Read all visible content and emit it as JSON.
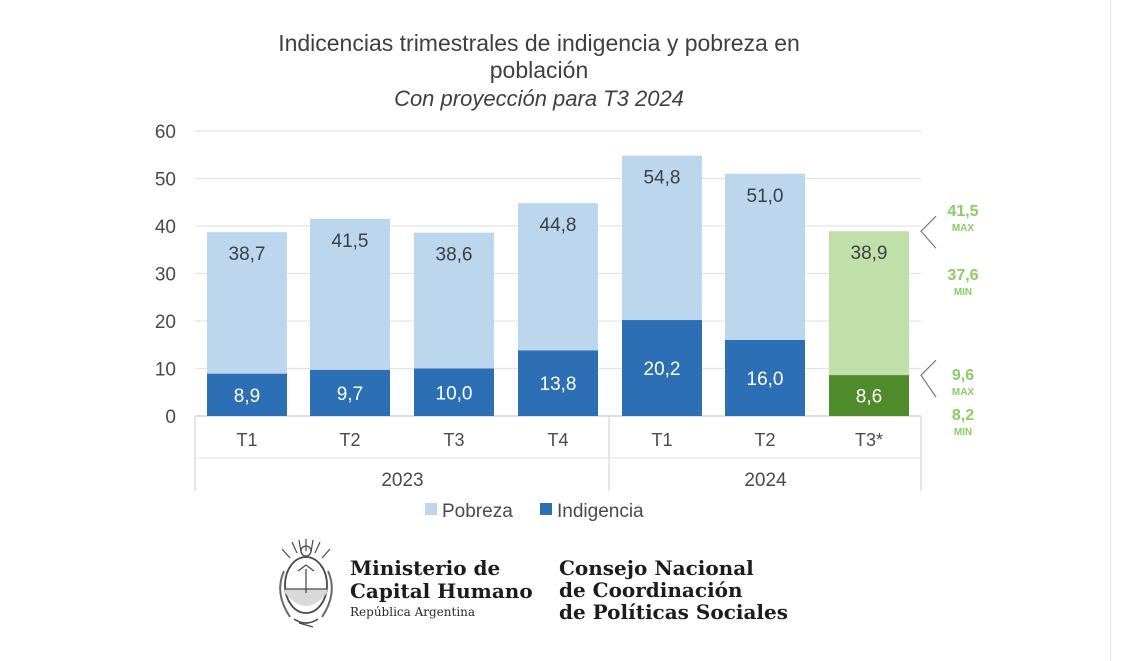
{
  "chart_data": {
    "type": "bar",
    "stacked": false,
    "title": [
      "Indicencias trimestrales de indigencia y pobreza en",
      "población"
    ],
    "subtitle": "Con proyección para T3 2024",
    "categories": [
      "T1",
      "T2",
      "T3",
      "T4",
      "T1",
      "T2",
      "T3*"
    ],
    "years": [
      {
        "label": "2023",
        "span": [
          0,
          3
        ]
      },
      {
        "label": "2024",
        "span": [
          4,
          6
        ]
      }
    ],
    "ylim": [
      0,
      60
    ],
    "yticks": [
      "0",
      "10",
      "20",
      "30",
      "40",
      "50",
      "60"
    ],
    "grid": true,
    "series": [
      {
        "name": "Pobreza",
        "values": [
          38.7,
          41.5,
          38.6,
          44.8,
          54.8,
          51.0,
          38.9
        ],
        "labels": [
          "38,7",
          "41,5",
          "38,6",
          "44,8",
          "54,8",
          "51,0",
          "38,9"
        ],
        "color": "#bcd6ee",
        "projection_color": "#c1e0a9"
      },
      {
        "name": "Indigencia",
        "values": [
          8.9,
          9.7,
          10.0,
          13.8,
          20.2,
          16.0,
          8.6
        ],
        "labels": [
          "8,9",
          "9,7",
          "10,0",
          "13,8",
          "20,2",
          "16,0",
          "8,6"
        ],
        "color": "#2d6fb4",
        "projection_color": "#4f8a2b"
      }
    ],
    "projection": {
      "category_index": 6,
      "pobreza": {
        "max": "41,5",
        "min": "37,6"
      },
      "indigencia": {
        "max": "9,6",
        "min": "8,2"
      },
      "max_tag": "MAX",
      "min_tag": "MIN"
    },
    "legend": [
      "Pobreza",
      "Indigencia"
    ],
    "legend_position": "bottom"
  },
  "footer": {
    "ministry_line1": "Ministerio de",
    "ministry_line2": "Capital Humano",
    "ministry_sub": "República Argentina",
    "council_line1": "Consejo Nacional",
    "council_line2": "de Coordinación",
    "council_line3": "de Políticas Sociales"
  },
  "colors": {
    "pobreza": "#bcd6ee",
    "indigencia": "#2d6fb4",
    "proj_pobreza": "#c1e0a9",
    "proj_indigencia": "#4f8a2b",
    "proj_text": "#8ccb66"
  }
}
